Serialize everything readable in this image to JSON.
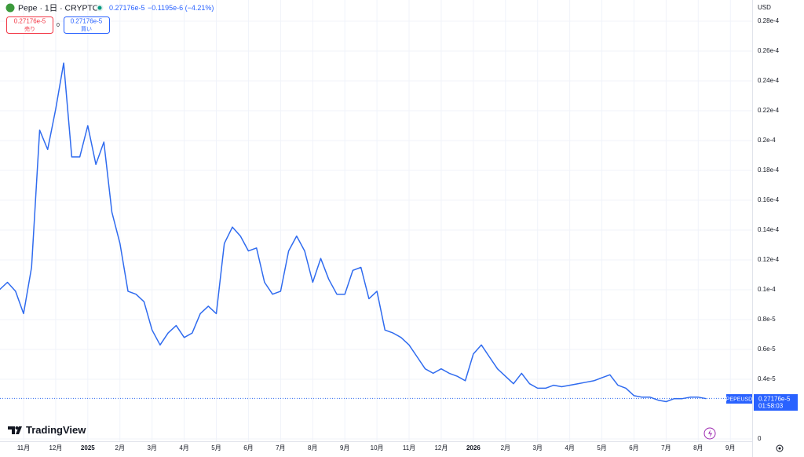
{
  "chart_data": {
    "type": "line",
    "title": "Pepe · 1日 · CRYPTO",
    "categories": [
      null,
      null,
      null,
      "11月",
      null,
      null,
      null,
      "12月",
      null,
      null,
      null,
      "2025",
      null,
      null,
      null,
      "2月",
      null,
      null,
      null,
      "3月",
      null,
      null,
      null,
      "4月",
      null,
      null,
      null,
      "5月",
      null,
      null,
      null,
      "6月",
      null,
      null,
      null,
      "7月",
      null,
      null,
      null,
      "8月",
      null,
      null,
      null,
      "9月",
      null,
      null,
      null,
      "10月",
      null,
      null,
      null,
      "11月",
      null,
      null,
      null,
      "12月",
      null,
      null,
      null,
      "2026",
      null,
      null,
      null,
      "2月",
      null,
      null,
      null,
      "3月",
      null,
      null,
      null,
      "4月",
      null,
      null,
      null,
      "5月",
      null,
      null,
      null,
      "6月",
      null,
      null,
      null,
      "7月",
      null,
      null,
      null,
      "8月",
      null,
      null,
      null,
      "9月",
      null,
      null
    ],
    "series": [
      {
        "name": "PEPEUSD",
        "color": "#2f6bef",
        "values": [
          1e-05,
          1.05e-05,
          9.9e-06,
          8.4e-06,
          1.15e-05,
          2.07e-05,
          1.94e-05,
          2.21e-05,
          2.52e-05,
          1.89e-05,
          1.89e-05,
          2.1e-05,
          1.84e-05,
          1.99e-05,
          1.52e-05,
          1.31e-05,
          9.9e-06,
          9.7e-06,
          9.2e-06,
          7.3e-06,
          6.3e-06,
          7.1e-06,
          7.6e-06,
          6.8e-06,
          7.1e-06,
          8.4e-06,
          8.9e-06,
          8.4e-06,
          1.31e-05,
          1.42e-05,
          1.36e-05,
          1.26e-05,
          1.28e-05,
          1.05e-05,
          9.7e-06,
          9.9e-06,
          1.26e-05,
          1.36e-05,
          1.26e-05,
          1.05e-05,
          1.21e-05,
          1.07e-05,
          9.7e-06,
          9.7e-06,
          1.13e-05,
          1.15e-05,
          9.4e-06,
          9.9e-06,
          7.3e-06,
          7.1e-06,
          6.8e-06,
          6.3e-06,
          5.5e-06,
          4.7e-06,
          4.4e-06,
          4.7e-06,
          4.4e-06,
          4.2e-06,
          3.9e-06,
          5.7e-06,
          6.3e-06,
          5.5e-06,
          4.7e-06,
          4.2e-06,
          3.7e-06,
          4.4e-06,
          3.7e-06,
          3.4e-06,
          3.4e-06,
          3.6e-06,
          3.5e-06,
          3.6e-06,
          3.7e-06,
          3.8e-06,
          3.9e-06,
          4.1e-06,
          4.3e-06,
          3.6e-06,
          3.4e-06,
          2.9e-06,
          2.8e-06,
          2.8e-06,
          2.6e-06,
          2.5e-06,
          2.7e-06,
          2.7e-06,
          2.8e-06,
          2.8e-06,
          2.7e-06,
          null,
          null,
          null,
          null,
          null
        ]
      }
    ],
    "ylim": [
      0,
      2.942e-05
    ],
    "yticks": [
      {
        "value": 2.8e-05,
        "label": "0.28e-4"
      },
      {
        "value": 2.6e-05,
        "label": "0.26e-4"
      },
      {
        "value": 2.4e-05,
        "label": "0.24e-4"
      },
      {
        "value": 2.2e-05,
        "label": "0.22e-4"
      },
      {
        "value": 2e-05,
        "label": "0.2e-4"
      },
      {
        "value": 1.8e-05,
        "label": "0.18e-4"
      },
      {
        "value": 1.6e-05,
        "label": "0.16e-4"
      },
      {
        "value": 1.4e-05,
        "label": "0.14e-4"
      },
      {
        "value": 1.2e-05,
        "label": "0.12e-4"
      },
      {
        "value": 1e-05,
        "label": "0.1e-4"
      },
      {
        "value": 8e-06,
        "label": "0.8e-5"
      },
      {
        "value": 6e-06,
        "label": "0.6e-5"
      },
      {
        "value": 4e-06,
        "label": "0.4e-5"
      },
      0
    ],
    "last_value": 2.7176e-06,
    "grid": true
  },
  "header": {
    "last": "0.27176e-5",
    "change": "−0.1195e-6 (−4.21%)",
    "sell_price": "0.27176e-5",
    "sell_label": "売り",
    "spread": "0",
    "buy_price": "0.27176e-5",
    "buy_label": "買い",
    "currency": "USD"
  },
  "price_label": {
    "symbol": "PEPEUSD",
    "price": "0.27176e-5",
    "countdown": "01:58:03"
  },
  "logo": "TradingView"
}
